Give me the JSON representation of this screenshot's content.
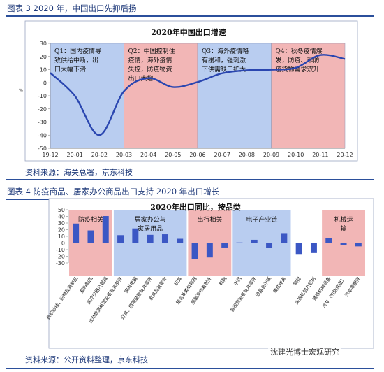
{
  "figure1": {
    "header": "图表 3  2020 年，中国出口先抑后扬",
    "source": "资料来源：海关总署，京东科技",
    "chart_data": {
      "type": "line",
      "title": "2020年中国出口增速",
      "x": [
        "19-12",
        "20-01",
        "20-02",
        "20-03",
        "20-04",
        "20-05",
        "20-06",
        "20-07",
        "20-08",
        "20-09",
        "20-10",
        "20-11",
        "20-12"
      ],
      "tick_labels": [
        "19-12",
        "20-01",
        "20-02",
        "20-03",
        "20-04",
        "20-05",
        "20-06",
        "20-07",
        "20-08",
        "20-09",
        "20-10",
        "20-11",
        "20-12"
      ],
      "series": [
        {
          "name": "",
          "values": [
            7.5,
            -10,
            -40,
            -6.5,
            3.5,
            -3.3,
            0.5,
            7.2,
            9.5,
            9.9,
            11.4,
            21.1,
            18.1
          ]
        }
      ],
      "ylabel": "%",
      "ylim": [
        -50,
        30
      ],
      "yticks": [
        -50,
        -40,
        -30,
        -20,
        -10,
        0,
        10,
        20,
        30
      ],
      "ytick_labels": [
        "-50",
        "-40",
        "-30",
        "-20",
        "-10",
        "0",
        "10",
        "20",
        "30"
      ],
      "grid": false,
      "annotations": [
        {
          "from": "19-12",
          "to": "20-03",
          "color": "#b9cdf0",
          "lines": [
            "Q1：国内疫情导",
            "致供给中断，出",
            "口大幅下滑"
          ]
        },
        {
          "from": "20-03",
          "to": "20-06",
          "color": "#f2b6b6",
          "lines": [
            "Q2：中国控制住",
            "疫情，海外疫情",
            "失控，防疫物资",
            "出口大增"
          ]
        },
        {
          "from": "20-06",
          "to": "20-09",
          "color": "#b9cdf0",
          "lines": [
            "Q3：海外疫情略",
            "有缓和，强刺激",
            "下供需缺口扩大"
          ]
        },
        {
          "from": "20-09",
          "to": "20-12",
          "color": "#f2b6b6",
          "lines": [
            "Q4：秋冬疫情爆",
            "发，防疫、非防",
            "疫货物需求双升"
          ]
        }
      ]
    }
  },
  "figure2": {
    "header": "图表 4  防疫商品、居家办公商品出口支持 2020 年出口增长",
    "source": "资料来源：公开资料整理，京东科技",
    "watermark": "沈建光博士宏观研究",
    "chart_data": {
      "type": "bar",
      "title": "2020年出口同比，按品类",
      "categories": [
        "纺织纱线、织物及其制品",
        "塑料制品",
        "医疗仪器及器械",
        "自动数据处理设备及其部件",
        "家用电器",
        "灯具、照明装置及其零件",
        "家具及其零件",
        "玩具",
        "箱包及类似容器",
        "服装及衣着附件",
        "鞋靴",
        "手机",
        "音视频设备及其零件",
        "液晶显示板",
        "集成电路",
        "钢材",
        "未锻轧铝及铝材",
        "通用机械设备",
        "汽车（包括底盘）",
        "汽车零配件"
      ],
      "tick_labels": [
        "纺织纱线、织物及其制品",
        "塑料制品",
        "医疗仪器及器械",
        "自动数据处理设备及其部件",
        "家用电器",
        "灯具、照明装置及其零件",
        "家具及其零件",
        "玩具",
        "箱包及类似容器",
        "服装及衣着附件",
        "鞋靴",
        "手机",
        "音视频设备及其零件",
        "液晶显示板",
        "集成电路",
        "钢材",
        "未锻轧铝及铝材",
        "通用机械设备",
        "汽车（包括底盘）",
        "汽车零配件"
      ],
      "values": [
        29.2,
        18.9,
        40.5,
        11.8,
        21.9,
        12.3,
        13.1,
        6.3,
        -24.6,
        -21.8,
        -6.8,
        0.8,
        4.8,
        -7.2,
        14.8,
        -16.6,
        -15.1,
        7.1,
        -3.0,
        -5.1
      ],
      "ylim": [
        -30,
        50
      ],
      "yticks": [
        -30,
        -20,
        -10,
        0,
        10,
        20,
        30,
        40,
        50
      ],
      "ytick_labels": [
        "-30",
        "-20",
        "-10",
        "0",
        "10",
        "20",
        "30",
        "40",
        "50"
      ],
      "bar_color": "#3b57c4",
      "grid": false,
      "groups": [
        {
          "from": 0,
          "to": 2,
          "color": "#f2b6b6",
          "label_lines": [
            "防疫相关"
          ]
        },
        {
          "from": 3,
          "to": 7,
          "color": "#b9cdf0",
          "label_lines": [
            "居家办公与",
            "家居用品"
          ]
        },
        {
          "from": 8,
          "to": 10,
          "color": "#f2b6b6",
          "label_lines": [
            "出行相关"
          ]
        },
        {
          "from": 11,
          "to": 14,
          "color": "#b9cdf0",
          "label_lines": [
            "电子产业链"
          ]
        },
        {
          "from": 17,
          "to": 19,
          "color": "#f2b6b6",
          "label_lines": [
            "机械运",
            "输"
          ]
        }
      ]
    }
  }
}
